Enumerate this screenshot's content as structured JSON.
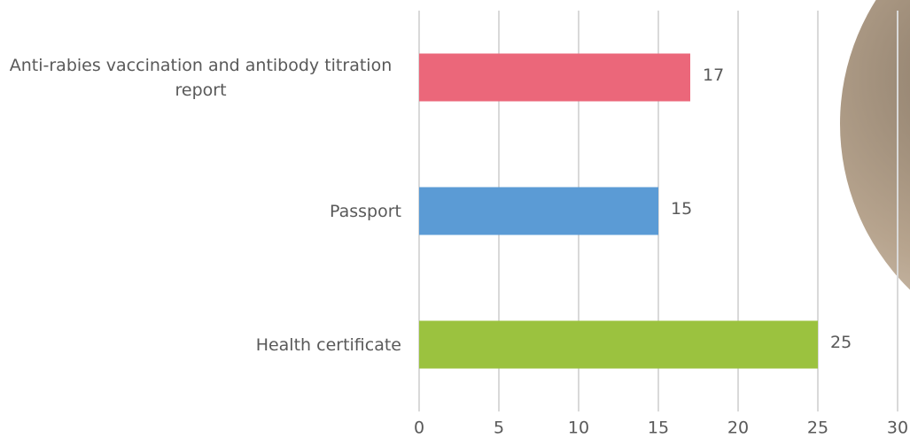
{
  "chart_data": {
    "type": "bar",
    "orientation": "horizontal",
    "categories": [
      "Anti-rabies vaccination and antibody titration report",
      "Passport",
      "Health certificate"
    ],
    "values": [
      17,
      15,
      25
    ],
    "colors": [
      "#eb677a",
      "#5b9bd5",
      "#9bc23f"
    ],
    "xlim": [
      0,
      30
    ],
    "xticks": [
      0,
      5,
      10,
      15,
      20,
      25,
      30
    ],
    "grid": true
  }
}
